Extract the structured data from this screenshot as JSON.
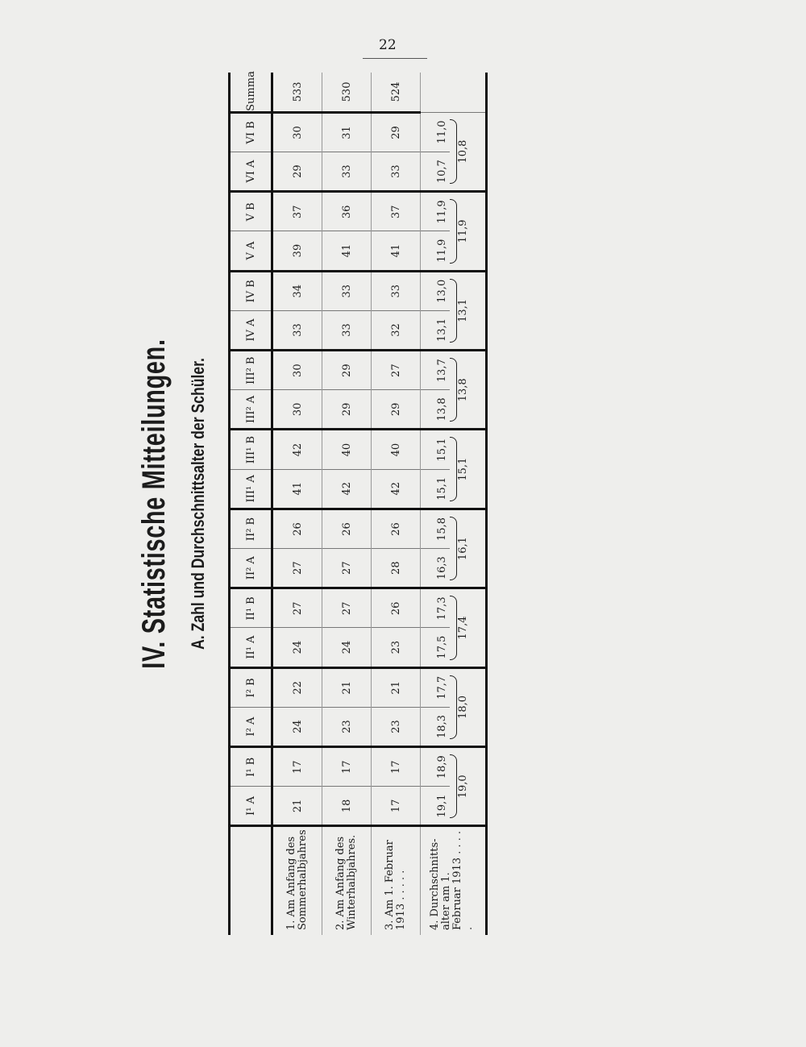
{
  "page_number": "22",
  "title": "IV. Statistische Mitteilungen.",
  "subtitle": "A. Zahl und Durchschnittsalter der Schüler.",
  "table": {
    "columns": [
      "I¹ A",
      "I¹ B",
      "I² A",
      "I² B",
      "II¹ A",
      "II¹ B",
      "II² A",
      "II² B",
      "III¹ A",
      "III¹ B",
      "III² A",
      "III² B",
      "IV A",
      "IV B",
      "V A",
      "V B",
      "VI A",
      "VI B",
      "Summa"
    ],
    "rows": [
      {
        "label": "1. Am Anfang des Sommerhalbjahres",
        "values": [
          "21",
          "17",
          "24",
          "22",
          "24",
          "27",
          "27",
          "26",
          "41",
          "42",
          "30",
          "30",
          "33",
          "34",
          "39",
          "37",
          "29",
          "30",
          "533"
        ]
      },
      {
        "label": "2. Am Anfang des Winterhalbjahres.",
        "values": [
          "18",
          "17",
          "23",
          "21",
          "24",
          "27",
          "27",
          "26",
          "42",
          "40",
          "29",
          "29",
          "33",
          "33",
          "41",
          "36",
          "33",
          "31",
          "530"
        ]
      },
      {
        "label": "3. Am 1. Februar 1913 . . . . .",
        "values": [
          "17",
          "17",
          "23",
          "21",
          "23",
          "26",
          "28",
          "26",
          "42",
          "40",
          "29",
          "27",
          "32",
          "33",
          "41",
          "37",
          "33",
          "29",
          "524"
        ]
      },
      {
        "label": "4. Durchschnitts-alter am 1. Februar 1913 . . . . .",
        "values": [
          "19,1",
          "18,9",
          "18,3",
          "17,7",
          "17,5",
          "17,3",
          "16,3",
          "15,8",
          "15,1",
          "15,1",
          "13,8",
          "13,7",
          "13,1",
          "13,0",
          "11,9",
          "11,9",
          "10,7",
          "11,0"
        ],
        "group_averages": [
          "19,0",
          "18,0",
          "17,4",
          "16,1",
          "15,1",
          "13,8",
          "13,1",
          "11,9",
          "10,8"
        ]
      }
    ]
  }
}
